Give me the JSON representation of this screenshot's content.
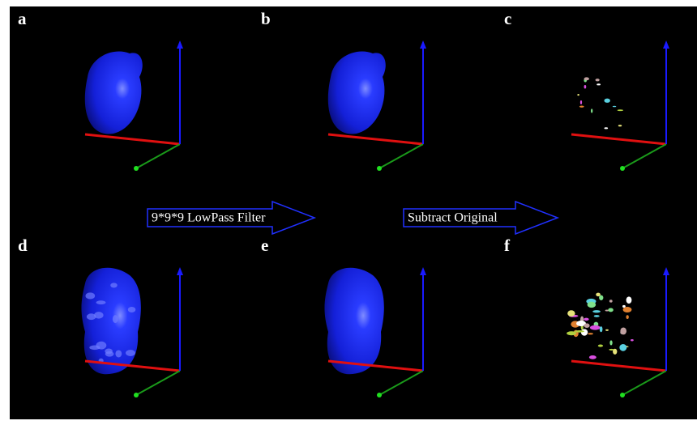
{
  "panels": [
    {
      "label": "a"
    },
    {
      "label": "b"
    },
    {
      "label": "c"
    },
    {
      "label": "d"
    },
    {
      "label": "e"
    },
    {
      "label": "f"
    }
  ],
  "arrows": [
    {
      "label": "9*9*9 LowPass Filter"
    },
    {
      "label": "Subtract Original"
    }
  ]
}
